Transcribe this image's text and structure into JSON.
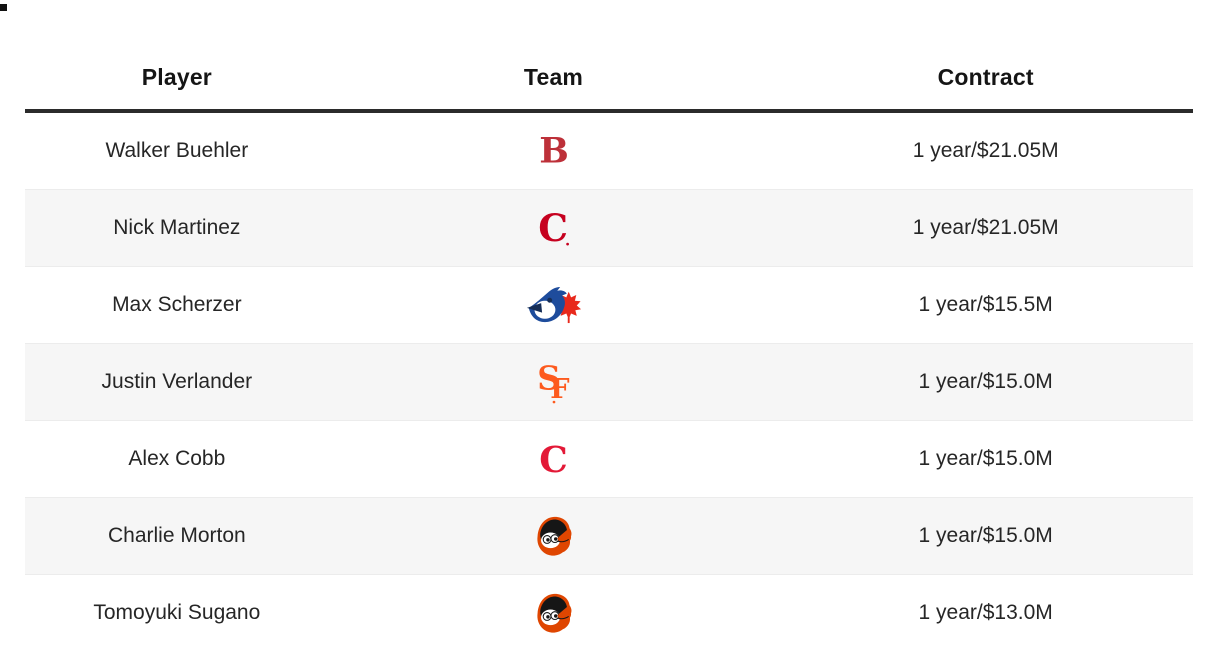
{
  "table": {
    "columns": [
      "Player",
      "Team",
      "Contract"
    ],
    "rows": [
      {
        "player": "Walker Buehler",
        "team": "Boston Red Sox",
        "team_key": "red-sox",
        "contract": "1 year/$21.05M"
      },
      {
        "player": "Nick Martinez",
        "team": "Cincinnati Reds",
        "team_key": "reds",
        "contract": "1 year/$21.05M"
      },
      {
        "player": "Max Scherzer",
        "team": "Toronto Blue Jays",
        "team_key": "blue-jays",
        "contract": "1 year/$15.5M"
      },
      {
        "player": "Justin Verlander",
        "team": "San Francisco Giants",
        "team_key": "giants",
        "contract": "1 year/$15.0M"
      },
      {
        "player": "Alex Cobb",
        "team": "Cleveland Guardians",
        "team_key": "guardians",
        "contract": "1 year/$15.0M"
      },
      {
        "player": "Charlie Morton",
        "team": "Baltimore Orioles",
        "team_key": "orioles",
        "contract": "1 year/$15.0M"
      },
      {
        "player": "Tomoyuki Sugano",
        "team": "Baltimore Orioles",
        "team_key": "orioles",
        "contract": "1 year/$13.0M"
      }
    ]
  },
  "logo_glyphs": {
    "red_sox_letter": "B",
    "reds_letter": "C",
    "guardians_letter": "C",
    "giants_s": "S",
    "giants_f": "F"
  },
  "colors": {
    "red_sox_red": "#BD3039",
    "reds_red": "#C6011F",
    "blue_jays_blue": "#1E4C9C",
    "blue_jays_navy": "#152D56",
    "maple_leaf_red": "#E8291C",
    "giants_orange": "#FD5A1E",
    "guardians_red": "#E31937",
    "orioles_orange": "#DF4601",
    "orioles_black": "#161616",
    "header_rule": "#2b2b2b",
    "alt_row_bg": "#f6f6f6"
  }
}
